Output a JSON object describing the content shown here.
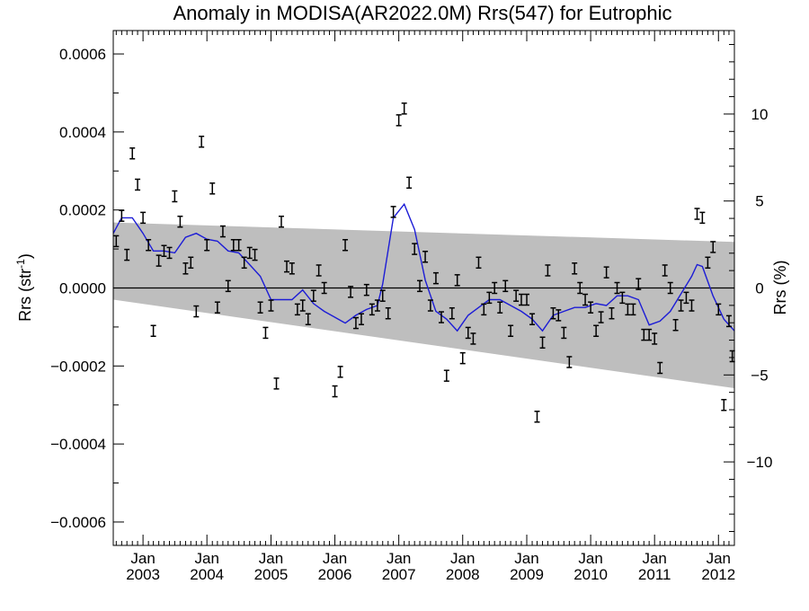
{
  "chart_data": {
    "type": "scatter",
    "title": "Anomaly in MODISA(AR2022.0M) Rrs(547) for Eutrophic",
    "ylabel_left": "Rrs (str",
    "ylabel_left_sup": "-1",
    "ylabel_left_end": ")",
    "ylabel_right": "Rrs (%)",
    "x_range": [
      "2002-07-15",
      "2012-04-01"
    ],
    "ylim": [
      -0.00066,
      0.00066
    ],
    "y2lim": [
      -14.8,
      14.8
    ],
    "x_ticks": [
      {
        "date": "2003-01-01",
        "month": "Jan",
        "year": "2003"
      },
      {
        "date": "2004-01-01",
        "month": "Jan",
        "year": "2004"
      },
      {
        "date": "2005-01-01",
        "month": "Jan",
        "year": "2005"
      },
      {
        "date": "2006-01-01",
        "month": "Jan",
        "year": "2006"
      },
      {
        "date": "2007-01-01",
        "month": "Jan",
        "year": "2007"
      },
      {
        "date": "2008-01-01",
        "month": "Jan",
        "year": "2008"
      },
      {
        "date": "2009-01-01",
        "month": "Jan",
        "year": "2009"
      },
      {
        "date": "2010-01-01",
        "month": "Jan",
        "year": "2010"
      },
      {
        "date": "2011-01-01",
        "month": "Jan",
        "year": "2011"
      },
      {
        "date": "2012-01-01",
        "month": "Jan",
        "year": "2012"
      }
    ],
    "y_ticks": [
      {
        "value": 0.0006,
        "label": "0.0006"
      },
      {
        "value": 0.0004,
        "label": "0.0004"
      },
      {
        "value": 0.0002,
        "label": "0.0002"
      },
      {
        "value": 0.0,
        "label": "0.0000"
      },
      {
        "value": -0.0002,
        "label": "−0.0002"
      },
      {
        "value": -0.0004,
        "label": "−0.0004"
      },
      {
        "value": -0.0006,
        "label": "−0.0006"
      }
    ],
    "y2_ticks": [
      {
        "value": 10,
        "label": "10"
      },
      {
        "value": 5,
        "label": "5"
      },
      {
        "value": 0,
        "label": "0"
      },
      {
        "value": -5,
        "label": "−5"
      },
      {
        "value": -10,
        "label": "−10"
      }
    ],
    "band": {
      "upper": [
        [
          "2002-07-15",
          0.000168
        ],
        [
          "2012-04-01",
          0.000118
        ]
      ],
      "lower": [
        [
          "2002-07-15",
          -3e-05
        ],
        [
          "2012-04-01",
          -0.000257
        ]
      ]
    },
    "points": [
      [
        "2002-08-01",
        0.00012
      ],
      [
        "2002-09-01",
        0.000185
      ],
      [
        "2002-10-01",
        8.5e-05
      ],
      [
        "2002-11-01",
        0.000345
      ],
      [
        "2002-12-01",
        0.000265
      ],
      [
        "2003-01-01",
        0.00018
      ],
      [
        "2003-02-01",
        0.00011
      ],
      [
        "2003-03-01",
        -0.00011
      ],
      [
        "2003-04-01",
        7e-05
      ],
      [
        "2003-05-01",
        9.5e-05
      ],
      [
        "2003-06-01",
        9e-05
      ],
      [
        "2003-07-01",
        0.000235
      ],
      [
        "2003-08-01",
        0.00017
      ],
      [
        "2003-09-01",
        5e-05
      ],
      [
        "2003-10-01",
        6.5e-05
      ],
      [
        "2003-11-01",
        -6e-05
      ],
      [
        "2003-12-01",
        0.000375
      ],
      [
        "2004-01-01",
        0.00011
      ],
      [
        "2004-02-01",
        0.000255
      ],
      [
        "2004-03-01",
        -5e-05
      ],
      [
        "2004-04-01",
        0.000145
      ],
      [
        "2004-05-01",
        5e-06
      ],
      [
        "2004-06-01",
        0.00011
      ],
      [
        "2004-07-01",
        0.00011
      ],
      [
        "2004-08-01",
        6.5e-05
      ],
      [
        "2004-09-01",
        9e-05
      ],
      [
        "2004-10-01",
        8.5e-05
      ],
      [
        "2004-11-01",
        -5e-05
      ],
      [
        "2004-12-01",
        -0.000115
      ],
      [
        "2005-01-01",
        -4.5e-05
      ],
      [
        "2005-02-01",
        -0.000245
      ],
      [
        "2005-03-01",
        0.00017
      ],
      [
        "2005-04-01",
        5.5e-05
      ],
      [
        "2005-05-01",
        5e-05
      ],
      [
        "2005-06-01",
        -5.5e-05
      ],
      [
        "2005-07-01",
        -4.5e-05
      ],
      [
        "2005-08-01",
        -8e-05
      ],
      [
        "2005-09-01",
        -2e-05
      ],
      [
        "2005-10-01",
        4.5e-05
      ],
      [
        "2005-11-01",
        0.0
      ],
      [
        "2006-01-01",
        -0.000265
      ],
      [
        "2006-02-01",
        -0.000215
      ],
      [
        "2006-03-01",
        0.00011
      ],
      [
        "2006-04-01",
        -1e-05
      ],
      [
        "2006-05-01",
        -9e-05
      ],
      [
        "2006-06-01",
        -8e-05
      ],
      [
        "2006-07-01",
        -5e-06
      ],
      [
        "2006-08-01",
        -5.5e-05
      ],
      [
        "2006-09-01",
        -4.5e-05
      ],
      [
        "2006-10-01",
        -2e-05
      ],
      [
        "2006-11-01",
        -6.5e-05
      ],
      [
        "2006-12-01",
        0.000195
      ],
      [
        "2007-01-01",
        0.00043
      ],
      [
        "2007-02-01",
        0.00046
      ],
      [
        "2007-03-01",
        0.00027
      ],
      [
        "2007-04-01",
        0.0001
      ],
      [
        "2007-05-01",
        5e-06
      ],
      [
        "2007-06-01",
        8e-05
      ],
      [
        "2007-07-01",
        -4.5e-05
      ],
      [
        "2007-08-01",
        2.5e-05
      ],
      [
        "2007-09-01",
        -7.5e-05
      ],
      [
        "2007-10-01",
        -0.000225
      ],
      [
        "2007-11-01",
        -6.5e-05
      ],
      [
        "2007-12-01",
        2e-05
      ],
      [
        "2008-01-01",
        -0.00018
      ],
      [
        "2008-02-01",
        -0.000115
      ],
      [
        "2008-03-01",
        -0.00013
      ],
      [
        "2008-04-01",
        6.5e-05
      ],
      [
        "2008-05-01",
        -5.5e-05
      ],
      [
        "2008-06-01",
        -2.5e-05
      ],
      [
        "2008-07-01",
        0.0
      ],
      [
        "2008-08-01",
        -5e-05
      ],
      [
        "2008-09-01",
        5e-06
      ],
      [
        "2008-10-01",
        -0.00011
      ],
      [
        "2008-11-01",
        -2e-05
      ],
      [
        "2008-12-01",
        -3e-05
      ],
      [
        "2009-01-01",
        -3e-05
      ],
      [
        "2009-02-01",
        -8e-05
      ],
      [
        "2009-03-01",
        -0.00033
      ],
      [
        "2009-04-01",
        -0.00014
      ],
      [
        "2009-05-01",
        4.5e-05
      ],
      [
        "2009-06-01",
        -6.5e-05
      ],
      [
        "2009-07-01",
        -7e-05
      ],
      [
        "2009-08-01",
        -0.000115
      ],
      [
        "2009-09-01",
        -0.00019
      ],
      [
        "2009-10-01",
        5e-05
      ],
      [
        "2009-11-01",
        0.0
      ],
      [
        "2009-12-01",
        -3e-05
      ],
      [
        "2010-01-01",
        -5e-05
      ],
      [
        "2010-02-01",
        -0.00011
      ],
      [
        "2010-03-01",
        -7.5e-05
      ],
      [
        "2010-04-01",
        4e-05
      ],
      [
        "2010-05-01",
        -6.5e-05
      ],
      [
        "2010-06-01",
        0.0
      ],
      [
        "2010-07-01",
        -2.5e-05
      ],
      [
        "2010-08-01",
        -5.5e-05
      ],
      [
        "2010-09-01",
        -5.5e-05
      ],
      [
        "2010-10-01",
        1e-05
      ],
      [
        "2010-11-01",
        -0.00012
      ],
      [
        "2010-12-01",
        -0.00012
      ],
      [
        "2011-01-01",
        -0.00013
      ],
      [
        "2011-02-01",
        -0.000205
      ],
      [
        "2011-03-01",
        4.5e-05
      ],
      [
        "2011-04-01",
        0.0
      ],
      [
        "2011-05-01",
        -9.5e-05
      ],
      [
        "2011-06-01",
        -4.5e-05
      ],
      [
        "2011-07-01",
        -2.5e-05
      ],
      [
        "2011-08-01",
        -4.5e-05
      ],
      [
        "2011-09-01",
        0.00019
      ],
      [
        "2011-10-01",
        0.00018
      ],
      [
        "2011-11-01",
        6.5e-05
      ],
      [
        "2011-12-01",
        0.000105
      ],
      [
        "2012-01-01",
        -5.5e-05
      ],
      [
        "2012-02-01",
        -0.0003
      ],
      [
        "2012-03-01",
        -8.5e-05
      ],
      [
        "2012-03-20",
        -0.000175
      ]
    ],
    "smooth": [
      [
        "2002-07-15",
        0.00014
      ],
      [
        "2002-09-01",
        0.00018
      ],
      [
        "2002-11-01",
        0.00018
      ],
      [
        "2003-01-01",
        0.00014
      ],
      [
        "2003-03-01",
        9.5e-05
      ],
      [
        "2003-05-01",
        9.5e-05
      ],
      [
        "2003-07-01",
        9e-05
      ],
      [
        "2003-09-01",
        0.00013
      ],
      [
        "2003-11-01",
        0.00014
      ],
      [
        "2004-01-01",
        0.000125
      ],
      [
        "2004-03-01",
        0.00012
      ],
      [
        "2004-05-01",
        9.5e-05
      ],
      [
        "2004-07-01",
        9e-05
      ],
      [
        "2004-09-01",
        6e-05
      ],
      [
        "2004-11-01",
        3e-05
      ],
      [
        "2005-01-01",
        -3e-05
      ],
      [
        "2005-03-01",
        -3e-05
      ],
      [
        "2005-05-01",
        -3e-05
      ],
      [
        "2005-07-01",
        -5e-06
      ],
      [
        "2005-09-01",
        -4e-05
      ],
      [
        "2005-11-01",
        -6e-05
      ],
      [
        "2006-01-01",
        -7.5e-05
      ],
      [
        "2006-03-01",
        -9e-05
      ],
      [
        "2006-05-01",
        -7e-05
      ],
      [
        "2006-07-01",
        -5.5e-05
      ],
      [
        "2006-09-01",
        -4.5e-05
      ],
      [
        "2006-10-01",
        1e-05
      ],
      [
        "2006-12-01",
        0.00018
      ],
      [
        "2007-02-01",
        0.000215
      ],
      [
        "2007-04-01",
        0.00015
      ],
      [
        "2007-06-01",
        2e-05
      ],
      [
        "2007-08-01",
        -6e-05
      ],
      [
        "2007-10-01",
        -8e-05
      ],
      [
        "2007-12-01",
        -0.00011
      ],
      [
        "2008-02-01",
        -7e-05
      ],
      [
        "2008-04-01",
        -5e-05
      ],
      [
        "2008-06-01",
        -3e-05
      ],
      [
        "2008-08-01",
        -3e-05
      ],
      [
        "2008-10-01",
        -4.5e-05
      ],
      [
        "2008-12-01",
        -6e-05
      ],
      [
        "2009-02-01",
        -8e-05
      ],
      [
        "2009-04-01",
        -0.00011
      ],
      [
        "2009-06-01",
        -7e-05
      ],
      [
        "2009-08-01",
        -6e-05
      ],
      [
        "2009-10-01",
        -5e-05
      ],
      [
        "2009-12-01",
        -5e-05
      ],
      [
        "2010-02-01",
        -4e-05
      ],
      [
        "2010-04-01",
        -4.5e-05
      ],
      [
        "2010-06-01",
        -2e-05
      ],
      [
        "2010-08-01",
        -2e-05
      ],
      [
        "2010-10-01",
        -3e-05
      ],
      [
        "2010-12-01",
        -9.5e-05
      ],
      [
        "2011-02-01",
        -8.5e-05
      ],
      [
        "2011-04-01",
        -6e-05
      ],
      [
        "2011-06-01",
        -1.5e-05
      ],
      [
        "2011-08-01",
        3e-05
      ],
      [
        "2011-09-01",
        6e-05
      ],
      [
        "2011-10-01",
        5.5e-05
      ],
      [
        "2011-12-01",
        -2e-05
      ],
      [
        "2012-02-01",
        -8e-05
      ],
      [
        "2012-04-01",
        -0.00011
      ]
    ],
    "colors": {
      "band": "#bebebe",
      "smooth": "#1c1cd6",
      "points": "#000000",
      "zero_line": "#000000"
    }
  }
}
